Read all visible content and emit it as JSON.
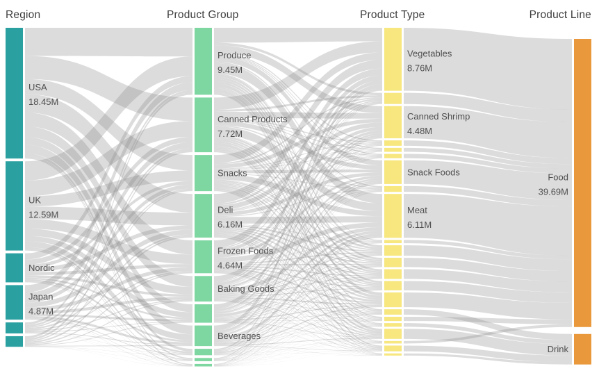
{
  "headers": [
    {
      "label": "Region"
    },
    {
      "label": "Product Group"
    },
    {
      "label": "Product Type"
    },
    {
      "label": "Product Line"
    }
  ],
  "chart_data": {
    "type": "sankey",
    "unit": "M",
    "link_color": "#8c8c8c",
    "label_color": "#4f4f4f",
    "columns": [
      {
        "id": "region",
        "title": "Region",
        "color": "#2aa0a1",
        "nodes": [
          {
            "name": "USA",
            "value": 18.45,
            "display_value": "18.45M"
          },
          {
            "name": "UK",
            "value": 12.59,
            "display_value": "12.59M"
          },
          {
            "name": "Nordic",
            "value": 4.1
          },
          {
            "name": "Japan",
            "value": 4.87,
            "display_value": "4.87M"
          },
          {
            "name": "",
            "value": 1.55
          },
          {
            "name": "",
            "value": 1.5
          }
        ]
      },
      {
        "id": "product-group",
        "title": "Product Group",
        "color": "#7ed6a0",
        "nodes": [
          {
            "name": "Produce",
            "value": 9.45,
            "display_value": "9.45M"
          },
          {
            "name": "Canned Products",
            "value": 7.72,
            "display_value": "7.72M"
          },
          {
            "name": "Snacks",
            "value": 5.1
          },
          {
            "name": "Deli",
            "value": 6.16,
            "display_value": "6.16M"
          },
          {
            "name": "Frozen Foods",
            "value": 4.64,
            "display_value": "4.64M"
          },
          {
            "name": "Baking Goods",
            "value": 3.6
          },
          {
            "name": "",
            "value": 2.6
          },
          {
            "name": "Beverages",
            "value": 2.9
          },
          {
            "name": "",
            "value": 0.9
          },
          {
            "name": "",
            "value": 0.45
          },
          {
            "name": "",
            "value": 0.35
          }
        ]
      },
      {
        "id": "product-type",
        "title": "Product Type",
        "color": "#f7e77e",
        "nodes": [
          {
            "name": "Vegetables",
            "value": 8.76,
            "display_value": "8.76M"
          },
          {
            "name": "",
            "value": 1.55
          },
          {
            "name": "Canned Shrimp",
            "value": 4.48,
            "display_value": "4.48M"
          },
          {
            "name": "",
            "value": 0.75
          },
          {
            "name": "",
            "value": 0.55
          },
          {
            "name": "",
            "value": 0.6
          },
          {
            "name": "Snack Foods",
            "value": 3.3
          },
          {
            "name": "",
            "value": 0.8
          },
          {
            "name": "Meat",
            "value": 6.11,
            "display_value": "6.11M"
          },
          {
            "name": "",
            "value": 0.45
          },
          {
            "name": "",
            "value": 1.45
          },
          {
            "name": "",
            "value": 1.3
          },
          {
            "name": "",
            "value": 1.35
          },
          {
            "name": "",
            "value": 1.3
          },
          {
            "name": "",
            "value": 2.05
          },
          {
            "name": "",
            "value": 0.75,
            "line": "Drink"
          },
          {
            "name": "",
            "value": 0.6
          },
          {
            "name": "",
            "value": 0.5,
            "line": "Drink"
          },
          {
            "name": "",
            "value": 1.4,
            "line": "Drink"
          },
          {
            "name": "",
            "value": 0.35
          },
          {
            "name": "",
            "value": 0.8,
            "line": "Drink"
          },
          {
            "name": "",
            "value": 0.3,
            "line": "Drink"
          }
        ]
      },
      {
        "id": "product-line",
        "title": "Product Line",
        "color": "#e9993c",
        "nodes": [
          {
            "name": "Food",
            "value": 39.69,
            "display_value": "39.69M"
          },
          {
            "name": "Drink",
            "value": 4.2
          }
        ]
      }
    ]
  }
}
